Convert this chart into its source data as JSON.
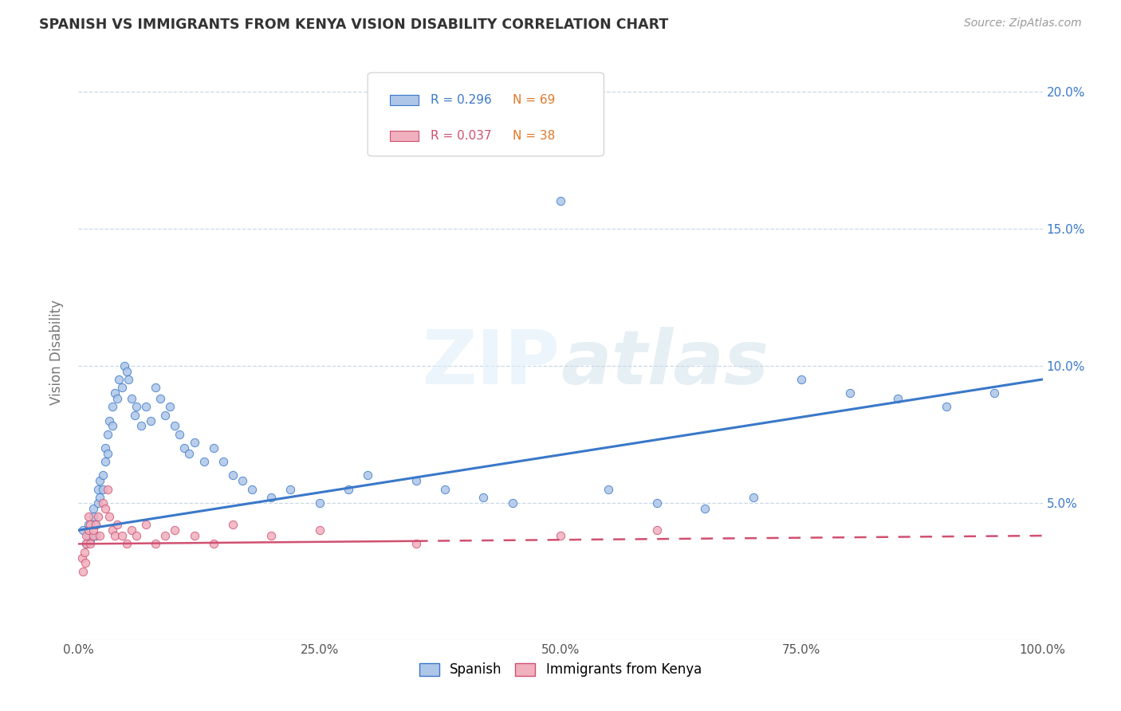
{
  "title": "SPANISH VS IMMIGRANTS FROM KENYA VISION DISABILITY CORRELATION CHART",
  "source": "Source: ZipAtlas.com",
  "ylabel": "Vision Disability",
  "watermark": "ZIPatlas",
  "legend_labels": [
    "Spanish",
    "Immigrants from Kenya"
  ],
  "blue_color": "#aec6e8",
  "blue_line_color": "#3a78c9",
  "pink_color": "#f0b0be",
  "pink_line_color": "#d05070",
  "background_color": "#ffffff",
  "grid_color": "#c8d8e8",
  "xlim": [
    0,
    1.0
  ],
  "ylim": [
    0,
    0.21
  ],
  "xticks": [
    0.0,
    0.25,
    0.5,
    0.75,
    1.0
  ],
  "xtick_labels": [
    "0.0%",
    "25.0%",
    "50.0%",
    "75.0%",
    "100.0%"
  ],
  "yticks": [
    0.0,
    0.05,
    0.1,
    0.15,
    0.2
  ],
  "ytick_labels_right": [
    "",
    "5.0%",
    "10.0%",
    "15.0%",
    "20.0%"
  ],
  "blue_slope": 0.055,
  "blue_intercept": 0.04,
  "pink_slope": 0.003,
  "pink_intercept": 0.035,
  "spanish_x": [
    0.005,
    0.008,
    0.01,
    0.01,
    0.012,
    0.015,
    0.015,
    0.018,
    0.018,
    0.02,
    0.02,
    0.022,
    0.022,
    0.025,
    0.025,
    0.028,
    0.028,
    0.03,
    0.03,
    0.032,
    0.035,
    0.035,
    0.038,
    0.04,
    0.042,
    0.045,
    0.048,
    0.05,
    0.052,
    0.055,
    0.058,
    0.06,
    0.065,
    0.07,
    0.075,
    0.08,
    0.085,
    0.09,
    0.095,
    0.1,
    0.105,
    0.11,
    0.115,
    0.12,
    0.13,
    0.14,
    0.15,
    0.16,
    0.17,
    0.18,
    0.2,
    0.22,
    0.25,
    0.28,
    0.3,
    0.35,
    0.38,
    0.42,
    0.45,
    0.5,
    0.55,
    0.6,
    0.65,
    0.7,
    0.75,
    0.8,
    0.85,
    0.9,
    0.95
  ],
  "spanish_y": [
    0.04,
    0.035,
    0.038,
    0.042,
    0.036,
    0.045,
    0.048,
    0.042,
    0.038,
    0.05,
    0.055,
    0.058,
    0.052,
    0.06,
    0.055,
    0.065,
    0.07,
    0.075,
    0.068,
    0.08,
    0.085,
    0.078,
    0.09,
    0.088,
    0.095,
    0.092,
    0.1,
    0.098,
    0.095,
    0.088,
    0.082,
    0.085,
    0.078,
    0.085,
    0.08,
    0.092,
    0.088,
    0.082,
    0.085,
    0.078,
    0.075,
    0.07,
    0.068,
    0.072,
    0.065,
    0.07,
    0.065,
    0.06,
    0.058,
    0.055,
    0.052,
    0.055,
    0.05,
    0.055,
    0.06,
    0.058,
    0.055,
    0.052,
    0.05,
    0.16,
    0.055,
    0.05,
    0.048,
    0.052,
    0.095,
    0.09,
    0.088,
    0.085,
    0.09
  ],
  "kenya_x": [
    0.004,
    0.005,
    0.006,
    0.007,
    0.008,
    0.008,
    0.01,
    0.01,
    0.012,
    0.012,
    0.015,
    0.015,
    0.018,
    0.02,
    0.022,
    0.025,
    0.028,
    0.03,
    0.032,
    0.035,
    0.038,
    0.04,
    0.045,
    0.05,
    0.055,
    0.06,
    0.07,
    0.08,
    0.09,
    0.1,
    0.12,
    0.14,
    0.16,
    0.2,
    0.25,
    0.35,
    0.5,
    0.6
  ],
  "kenya_y": [
    0.03,
    0.025,
    0.032,
    0.028,
    0.035,
    0.038,
    0.04,
    0.045,
    0.042,
    0.035,
    0.038,
    0.04,
    0.042,
    0.045,
    0.038,
    0.05,
    0.048,
    0.055,
    0.045,
    0.04,
    0.038,
    0.042,
    0.038,
    0.035,
    0.04,
    0.038,
    0.042,
    0.035,
    0.038,
    0.04,
    0.038,
    0.035,
    0.042,
    0.038,
    0.04,
    0.035,
    0.038,
    0.04
  ]
}
